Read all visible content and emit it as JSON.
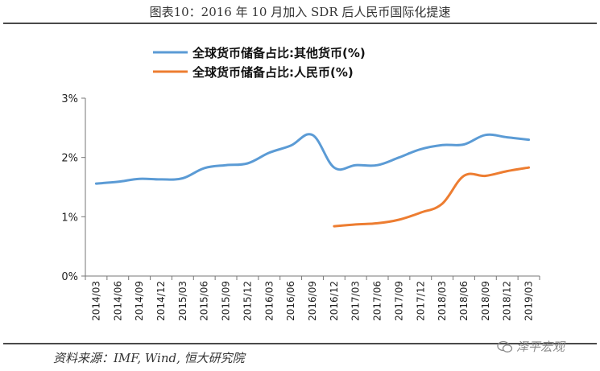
{
  "header": {
    "title": "图表10：2016 年 10 月加入 SDR 后人民币国际化提速"
  },
  "footer": {
    "source": "资料来源：IMF, Wind, 恒大研究院",
    "watermark": "泽平宏观"
  },
  "colors": {
    "series_other": "#5B9BD5",
    "series_rmb": "#ED7D31",
    "axis": "#777777"
  },
  "chart_data": {
    "type": "line",
    "title": "",
    "xlabel": "",
    "ylabel": "",
    "ylim": [
      0,
      3
    ],
    "yticks": [
      "0%",
      "1%",
      "2%",
      "3%"
    ],
    "grid": false,
    "legend_position": "top-left",
    "categories": [
      "2014/03",
      "2014/06",
      "2014/09",
      "2014/12",
      "2015/03",
      "2015/06",
      "2015/09",
      "2015/12",
      "2016/03",
      "2016/06",
      "2016/09",
      "2016/12",
      "2017/03",
      "2017/06",
      "2017/09",
      "2017/12",
      "2018/03",
      "2018/06",
      "2018/09",
      "2018/12",
      "2019/03"
    ],
    "series": [
      {
        "name": "全球货币储备占比:其他货币(%)",
        "color": "#5B9BD5",
        "values": [
          1.56,
          1.59,
          1.64,
          1.63,
          1.65,
          1.82,
          1.87,
          1.9,
          2.08,
          2.2,
          2.38,
          1.83,
          1.87,
          1.87,
          2.0,
          2.14,
          2.21,
          2.22,
          2.38,
          2.34,
          2.3
        ]
      },
      {
        "name": "全球货币储备占比:人民币(%)",
        "color": "#ED7D31",
        "values": [
          null,
          null,
          null,
          null,
          null,
          null,
          null,
          null,
          null,
          null,
          null,
          0.84,
          0.87,
          0.89,
          0.95,
          1.07,
          1.22,
          1.69,
          1.69,
          1.77,
          1.83
        ]
      }
    ]
  }
}
